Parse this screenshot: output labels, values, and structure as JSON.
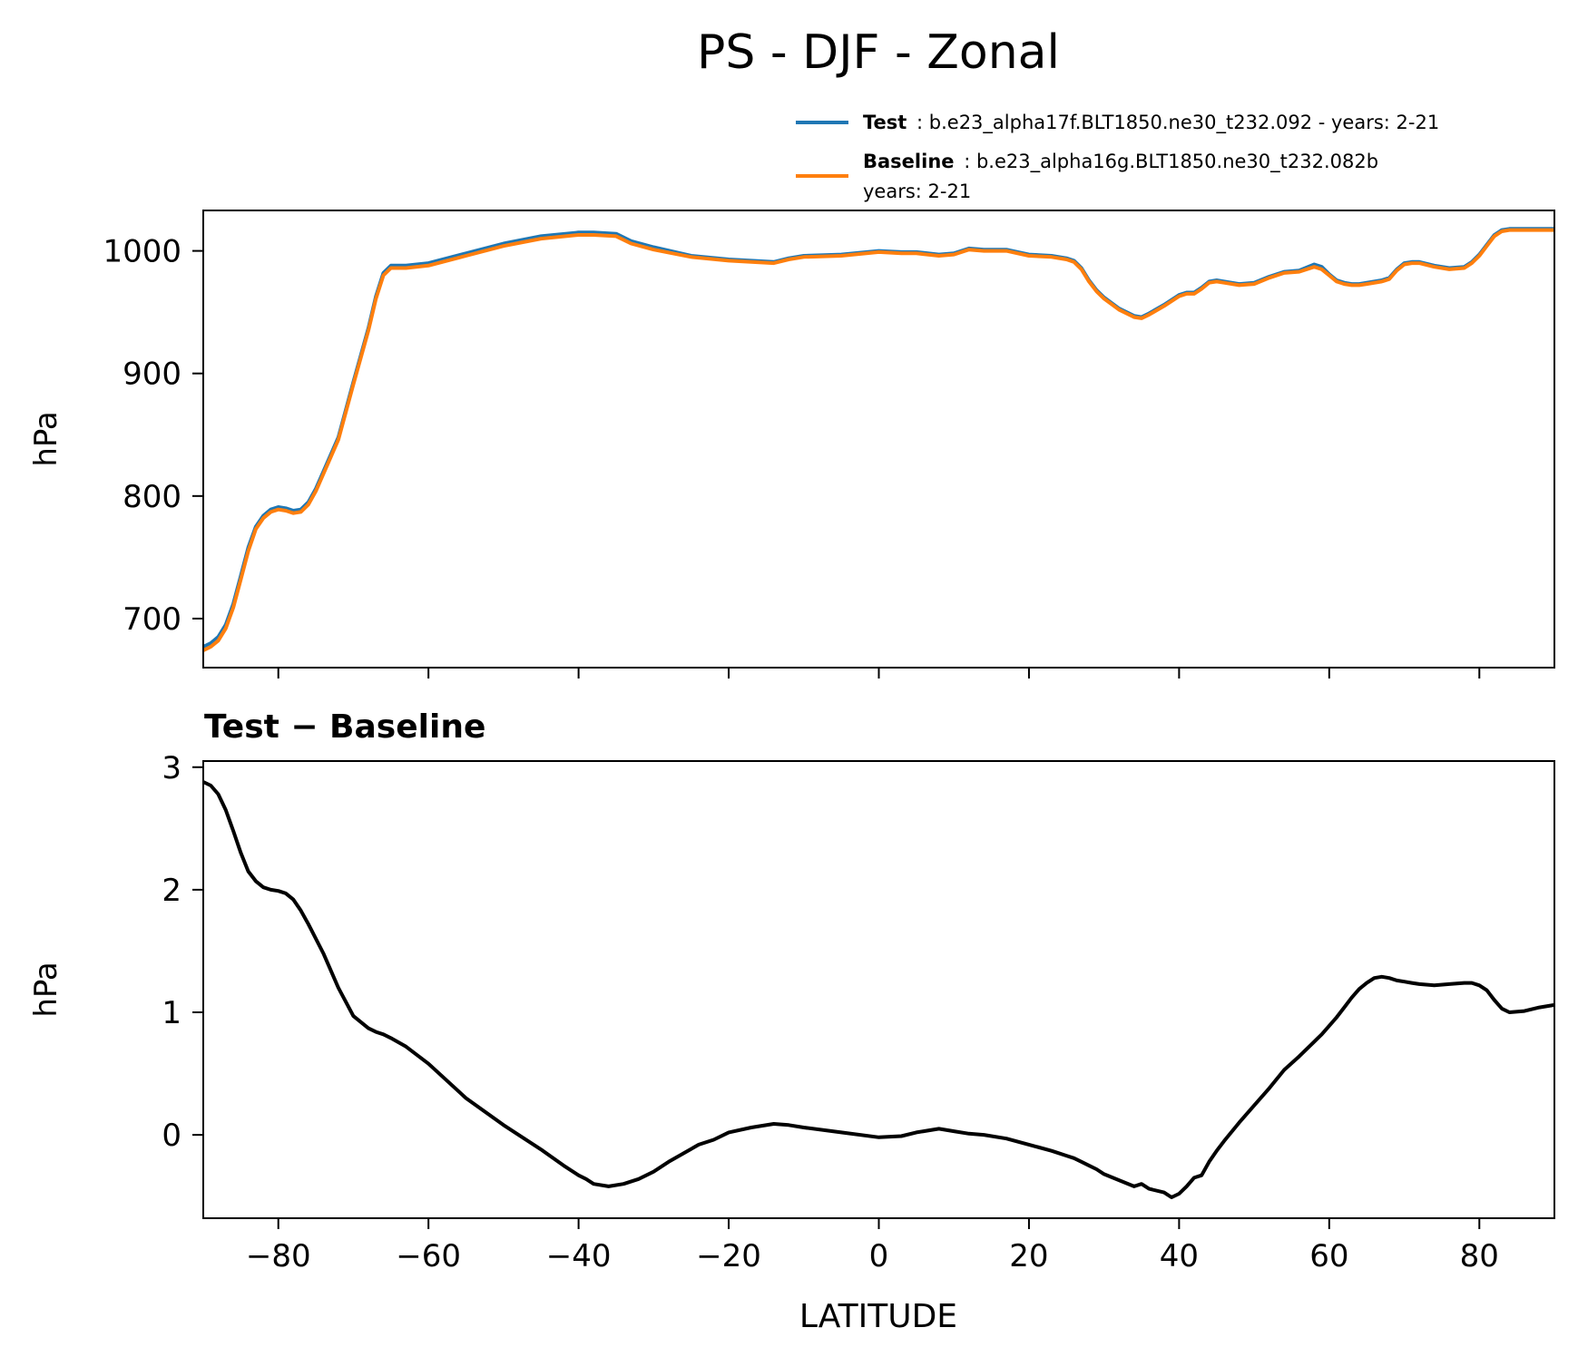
{
  "figure": {
    "title": "PS - DJF - Zonal",
    "xlabel": "LATITUDE"
  },
  "legend": {
    "placement": "top-right",
    "entries": [
      {
        "name_bold": "Test",
        "text_lines": [
          ": b.e23_alpha17f.BLT1850.ne30_t232.092 - years: 2-21"
        ],
        "color": "#1f77b4"
      },
      {
        "name_bold": "Baseline",
        "text_lines": [
          ": b.e23_alpha16g.BLT1850.ne30_t232.082b",
          "years: 2-21"
        ],
        "color": "#ff7f0e"
      }
    ]
  },
  "chart_data": [
    {
      "type": "line",
      "title": "",
      "xlabel": "",
      "ylabel": "hPa",
      "xlim": [
        -90,
        90
      ],
      "ylim": [
        660,
        1033
      ],
      "xticks": [
        -80,
        -60,
        -40,
        -20,
        0,
        20,
        40,
        60,
        80
      ],
      "yticks": [
        700,
        800,
        900,
        1000
      ],
      "show_xtick_labels": false,
      "x": [
        -90,
        -89,
        -88,
        -87,
        -86,
        -85,
        -84,
        -83,
        -82,
        -81,
        -80,
        -79,
        -78,
        -77,
        -76,
        -75,
        -74,
        -72,
        -70,
        -68,
        -67,
        -66,
        -65,
        -63,
        -60,
        -55,
        -50,
        -45,
        -40,
        -38,
        -35,
        -33,
        -30,
        -25,
        -20,
        -17,
        -14,
        -12,
        -10,
        -5,
        0,
        3,
        5,
        8,
        10,
        12,
        14,
        17,
        20,
        23,
        25,
        26,
        27,
        28,
        29,
        30,
        32,
        34,
        35,
        36,
        38,
        40,
        41,
        42,
        43,
        44,
        45,
        46,
        48,
        50,
        52,
        54,
        56,
        58,
        59,
        60,
        61,
        62,
        63,
        64,
        65,
        67,
        68,
        69,
        70,
        71,
        72,
        74,
        76,
        78,
        79,
        80,
        81,
        82,
        83,
        84,
        86,
        88,
        90
      ],
      "series": [
        {
          "name": "Test",
          "color": "#1f77b4",
          "values": [
            677,
            680,
            685,
            695,
            712,
            735,
            758,
            775,
            784,
            789,
            791,
            790,
            788,
            789,
            795,
            806,
            820,
            848,
            893,
            937,
            963,
            982,
            988,
            988,
            990,
            998,
            1006,
            1012,
            1015,
            1015,
            1014,
            1008,
            1003,
            996,
            993,
            992,
            991,
            994,
            996,
            997,
            1000,
            999,
            999,
            997,
            998,
            1002,
            1001,
            1001,
            997,
            996,
            994,
            992,
            986,
            976,
            968,
            962,
            953,
            947,
            946,
            949,
            956,
            964,
            966,
            966,
            970,
            975,
            976,
            975,
            973,
            974,
            979,
            983,
            984,
            989,
            987,
            981,
            976,
            974,
            973,
            973,
            974,
            976,
            978,
            985,
            990,
            991,
            991,
            988,
            986,
            987,
            991,
            997,
            1005,
            1013,
            1017,
            1018,
            1018,
            1018,
            1018
          ]
        },
        {
          "name": "Baseline",
          "color": "#ff7f0e",
          "values": [
            674,
            677,
            682,
            692,
            709,
            732,
            755,
            773,
            782,
            787,
            789,
            788,
            786,
            787,
            793,
            804,
            818,
            846,
            891,
            935,
            961,
            980,
            986,
            986,
            988,
            996,
            1004,
            1010,
            1013,
            1013,
            1012,
            1006,
            1001,
            995,
            992,
            991,
            990,
            993,
            995,
            996,
            999,
            998,
            998,
            996,
            997,
            1001,
            1000,
            1000,
            996,
            995,
            993,
            991,
            985,
            975,
            967,
            961,
            952,
            946,
            945,
            948,
            955,
            963,
            965,
            965,
            969,
            974,
            975,
            974,
            972,
            973,
            978,
            982,
            983,
            987,
            985,
            980,
            975,
            973,
            972,
            972,
            973,
            975,
            977,
            984,
            989,
            990,
            990,
            987,
            985,
            986,
            990,
            996,
            1004,
            1012,
            1016,
            1017,
            1017,
            1017,
            1017
          ]
        }
      ]
    },
    {
      "type": "line",
      "title": "Test − Baseline",
      "xlabel": "LATITUDE",
      "ylabel": "hPa",
      "xlim": [
        -90,
        90
      ],
      "ylim": [
        -0.68,
        3.05
      ],
      "xticks": [
        -80,
        -60,
        -40,
        -20,
        0,
        20,
        40,
        60,
        80
      ],
      "yticks": [
        0,
        1,
        2,
        3
      ],
      "show_xtick_labels": true,
      "x": [
        -90,
        -89,
        -88,
        -87,
        -86,
        -85,
        -84,
        -83,
        -82,
        -81,
        -80,
        -79,
        -78,
        -77,
        -76,
        -75,
        -74,
        -72,
        -70,
        -68,
        -67,
        -66,
        -65,
        -63,
        -60,
        -55,
        -50,
        -45,
        -42,
        -40,
        -39,
        -38,
        -36,
        -34,
        -32,
        -30,
        -28,
        -26,
        -24,
        -22,
        -20,
        -17,
        -14,
        -12,
        -10,
        -5,
        0,
        3,
        5,
        8,
        10,
        12,
        14,
        17,
        20,
        23,
        25,
        26,
        27,
        28,
        29,
        30,
        32,
        34,
        35,
        36,
        38,
        39,
        40,
        41,
        42,
        43,
        44,
        45,
        46,
        48,
        50,
        52,
        54,
        56,
        58,
        59,
        60,
        61,
        62,
        63,
        64,
        65,
        66,
        67,
        68,
        69,
        70,
        71,
        72,
        74,
        76,
        78,
        79,
        80,
        81,
        82,
        83,
        84,
        86,
        88,
        90
      ],
      "series": [
        {
          "name": "Test − Baseline",
          "color": "#000000",
          "values": [
            2.88,
            2.85,
            2.78,
            2.65,
            2.48,
            2.3,
            2.15,
            2.07,
            2.02,
            2.0,
            1.99,
            1.97,
            1.92,
            1.83,
            1.72,
            1.6,
            1.48,
            1.2,
            0.97,
            0.87,
            0.84,
            0.82,
            0.79,
            0.72,
            0.58,
            0.3,
            0.08,
            -0.12,
            -0.25,
            -0.33,
            -0.36,
            -0.4,
            -0.42,
            -0.4,
            -0.36,
            -0.3,
            -0.22,
            -0.15,
            -0.08,
            -0.04,
            0.02,
            0.06,
            0.09,
            0.08,
            0.06,
            0.02,
            -0.02,
            -0.01,
            0.02,
            0.05,
            0.03,
            0.01,
            0.0,
            -0.03,
            -0.08,
            -0.13,
            -0.17,
            -0.19,
            -0.22,
            -0.25,
            -0.28,
            -0.32,
            -0.37,
            -0.42,
            -0.4,
            -0.44,
            -0.47,
            -0.51,
            -0.48,
            -0.42,
            -0.35,
            -0.33,
            -0.22,
            -0.13,
            -0.05,
            0.1,
            0.24,
            0.38,
            0.53,
            0.64,
            0.76,
            0.82,
            0.89,
            0.96,
            1.04,
            1.12,
            1.19,
            1.24,
            1.28,
            1.29,
            1.28,
            1.26,
            1.25,
            1.24,
            1.23,
            1.22,
            1.23,
            1.24,
            1.24,
            1.22,
            1.18,
            1.1,
            1.03,
            1.0,
            1.01,
            1.04,
            1.06
          ]
        }
      ]
    }
  ]
}
